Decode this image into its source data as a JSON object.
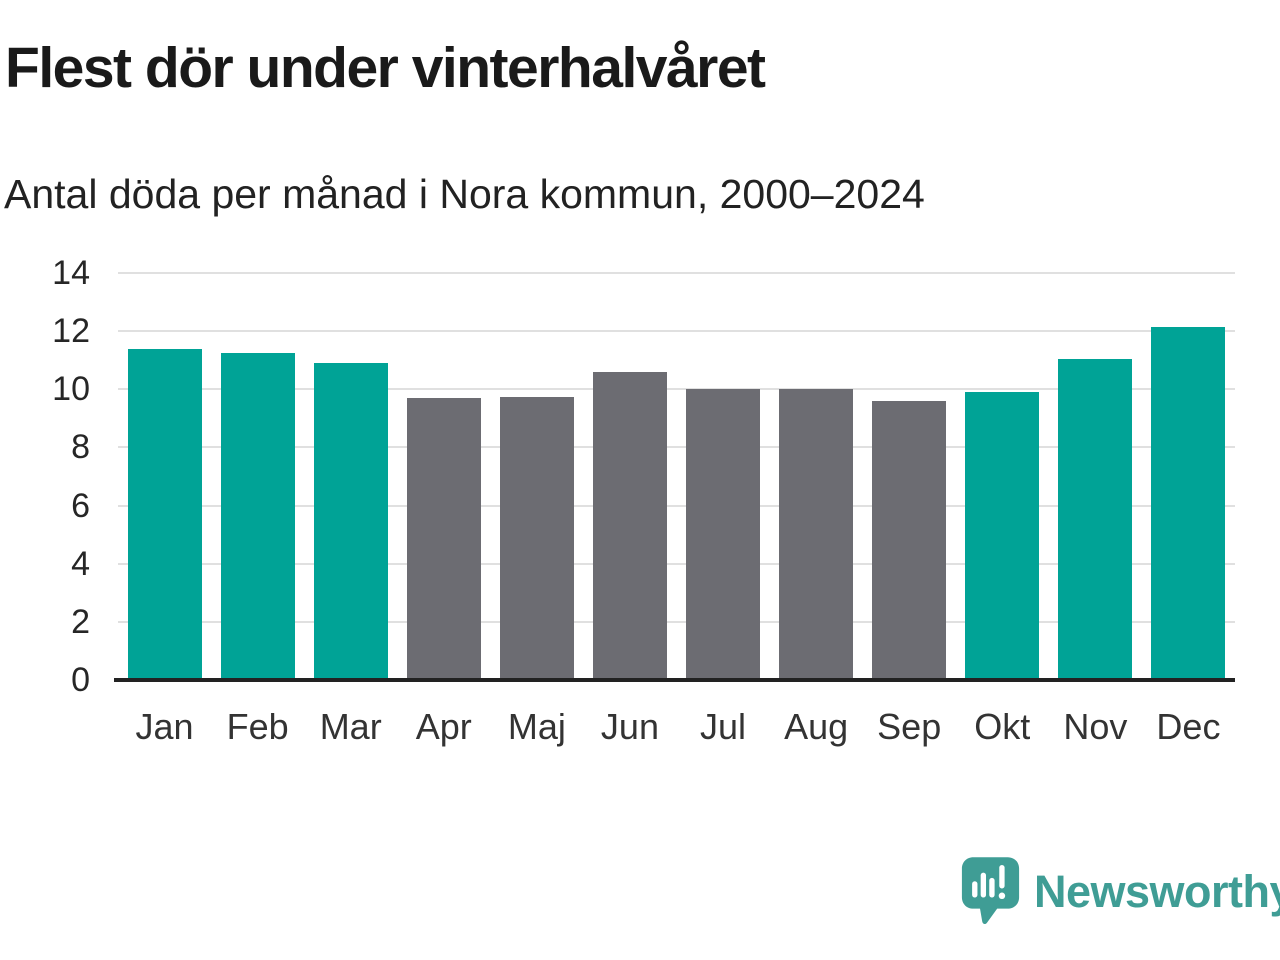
{
  "header": {
    "title": "Flest dör under vinterhalvåret",
    "subtitle": "Antal döda per månad i Nora kommun, 2000–2024"
  },
  "chart_data": {
    "type": "bar",
    "categories": [
      "Jan",
      "Feb",
      "Mar",
      "Apr",
      "Maj",
      "Jun",
      "Jul",
      "Aug",
      "Sep",
      "Okt",
      "Nov",
      "Dec"
    ],
    "values": [
      11.4,
      11.25,
      10.9,
      9.7,
      9.75,
      10.6,
      10.0,
      10.0,
      9.6,
      9.9,
      11.05,
      12.15
    ],
    "bar_color_keys": [
      "teal",
      "teal",
      "teal",
      "gray",
      "gray",
      "gray",
      "gray",
      "gray",
      "gray",
      "teal",
      "teal",
      "teal"
    ],
    "palette": {
      "teal": "#00a396",
      "gray": "#6c6c72"
    },
    "title": "Flest dör under vinterhalvåret",
    "subtitle": "Antal döda per månad i Nora kommun, 2000–2024",
    "xlabel": "",
    "ylabel": "",
    "ylim": [
      0,
      14
    ],
    "yticks": [
      0,
      2,
      4,
      6,
      8,
      10,
      12,
      14
    ],
    "grid": "horizontal",
    "gridline_color": "#e0e0e0",
    "axis_color": "#222222",
    "legend": "none"
  },
  "footer": {
    "brand": "Newsworthy",
    "brand_color": "#3f9d95"
  }
}
